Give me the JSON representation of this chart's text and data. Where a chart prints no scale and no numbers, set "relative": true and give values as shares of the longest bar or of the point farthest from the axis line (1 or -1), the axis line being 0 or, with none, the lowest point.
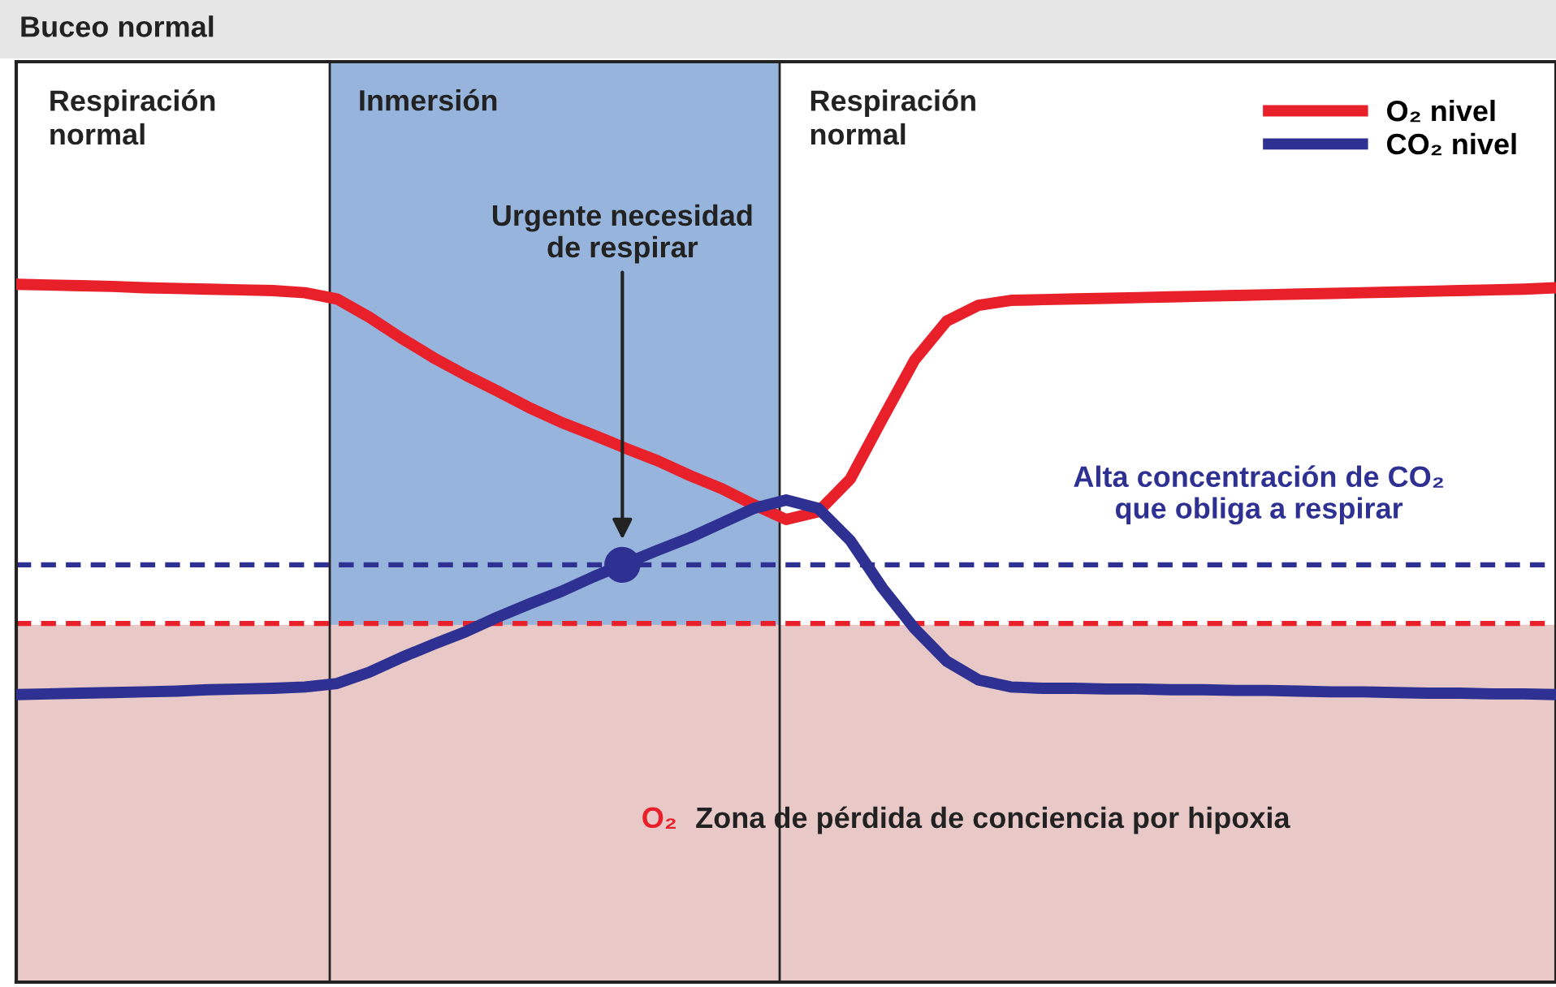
{
  "chart_data": {
    "type": "line",
    "relative": true,
    "title": "Buceo normal",
    "categories": [
      null,
      null,
      null,
      null,
      null,
      null,
      null,
      null,
      null,
      null,
      null,
      null,
      null,
      null,
      null,
      null,
      null,
      null,
      null,
      null,
      null,
      null,
      null,
      null,
      null,
      null,
      null,
      null,
      null,
      null,
      null,
      null,
      null,
      null,
      null,
      null,
      null,
      null,
      null,
      null,
      null,
      null,
      null,
      null,
      null,
      null,
      null,
      null,
      null
    ],
    "series": [
      {
        "name": "O₂ nivel",
        "color": "#e8202a",
        "values": [
          1.0,
          0.999,
          0.998,
          0.997,
          0.995,
          0.994,
          0.993,
          0.992,
          0.991,
          0.988,
          0.979,
          0.953,
          0.923,
          0.895,
          0.87,
          0.847,
          0.823,
          0.802,
          0.784,
          0.765,
          0.747,
          0.726,
          0.707,
          0.684,
          0.663,
          0.674,
          0.721,
          0.807,
          0.891,
          0.947,
          0.97,
          0.977,
          0.978,
          0.979,
          0.98,
          0.981,
          0.982,
          0.983,
          0.984,
          0.985,
          0.986,
          0.987,
          0.988,
          0.989,
          0.99,
          0.991,
          0.992,
          0.993,
          0.995
        ]
      },
      {
        "name": "CO₂ nivel",
        "color": "#2e3192",
        "values": [
          0.412,
          0.413,
          0.414,
          0.415,
          0.416,
          0.417,
          0.419,
          0.42,
          0.421,
          0.423,
          0.428,
          0.444,
          0.465,
          0.484,
          0.502,
          0.523,
          0.542,
          0.56,
          0.581,
          0.6,
          0.619,
          0.637,
          0.658,
          0.679,
          0.691,
          0.679,
          0.633,
          0.565,
          0.507,
          0.46,
          0.433,
          0.423,
          0.421,
          0.421,
          0.42,
          0.42,
          0.419,
          0.419,
          0.418,
          0.418,
          0.417,
          0.416,
          0.416,
          0.415,
          0.414,
          0.414,
          0.413,
          0.413,
          0.412
        ]
      }
    ],
    "bands": [
      {
        "axis": "y",
        "from": 0,
        "to": 0.512,
        "label": "Zona de pérdida de conciencia por hipoxia",
        "color": "#e8c9c8"
      }
    ],
    "ref_lines": [
      {
        "axis": "y",
        "value": 0.598,
        "label": "Alta concentración de CO₂\nque obliga a respirar",
        "color": "#2e3192",
        "line_style": "dashed"
      },
      {
        "axis": "y",
        "value": 0.514,
        "color": "#e8202a",
        "line_style": "dashed"
      }
    ],
    "annotations": [
      "Respiración\nnormal",
      "Respiración\nnormal",
      "Urgente necesidad\nde respirar",
      "O₂",
      "Inmersión"
    ],
    "legend": "top right",
    "marker": "none",
    "line_style": "solid"
  }
}
